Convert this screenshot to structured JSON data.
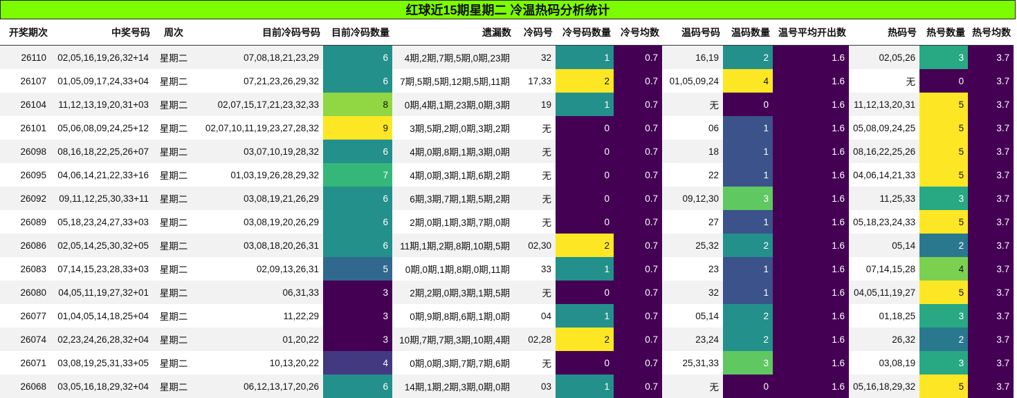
{
  "title": "红球近15期星期二 冷温热码分析统计",
  "columns": [
    "开奖期次",
    "中奖号码",
    "周次",
    "目前冷码号码",
    "目前冷码数量",
    "遗漏数",
    "冷码号",
    "冷号码数量",
    "冷号均数",
    "温码号码",
    "温码数量",
    "温号平均开出数",
    "热码号",
    "热号数量",
    "热号均数"
  ],
  "colors": {
    "title_bg": "#7CFC00",
    "row_even": "#f2f2f2",
    "row_odd": "#ffffff",
    "colormap": "viridis"
  },
  "chart_data": {
    "type": "table",
    "title": "红球近15期星期二 冷温热码分析统计",
    "heatmap_columns": {
      "目前冷码数量": {
        "min": 3,
        "max": 9
      },
      "冷号码数量": {
        "min": 0,
        "max": 2
      },
      "冷号均数": {
        "min": 0.7,
        "max": 0.7
      },
      "温码数量": {
        "min": 0,
        "max": 4
      },
      "温号平均开出数": {
        "min": 1.6,
        "max": 1.6
      },
      "热号数量": {
        "min": 0,
        "max": 5
      },
      "热号均数": {
        "min": 3.7,
        "max": 3.7
      }
    },
    "rows": [
      [
        "26110",
        "02,05,16,19,26,32+14",
        "星期二",
        "07,08,18,21,23,29",
        "6",
        "4期,2期,7期,5期,0期,23期",
        "32",
        "1",
        "0.7",
        "16,19",
        "2",
        "1.6",
        "02,05,26",
        "3",
        "3.7"
      ],
      [
        "26107",
        "01,05,09,17,24,33+04",
        "星期二",
        "07,21,23,26,29,32",
        "6",
        "7期,5期,5期,12期,5期,11期",
        "17,33",
        "2",
        "0.7",
        "01,05,09,24",
        "4",
        "1.6",
        "无",
        "0",
        "3.7"
      ],
      [
        "26104",
        "11,12,13,19,20,31+03",
        "星期二",
        "02,07,15,17,21,23,32,33",
        "8",
        "0期,4期,1期,23期,0期,3期",
        "19",
        "1",
        "0.7",
        "无",
        "0",
        "1.6",
        "11,12,13,20,31",
        "5",
        "3.7"
      ],
      [
        "26101",
        "05,06,08,09,24,25+12",
        "星期二",
        "02,07,10,11,19,23,27,28,32",
        "9",
        "3期,5期,2期,0期,3期,2期",
        "无",
        "0",
        "0.7",
        "06",
        "1",
        "1.6",
        "05,08,09,24,25",
        "5",
        "3.7"
      ],
      [
        "26098",
        "08,16,18,22,25,26+07",
        "星期二",
        "03,07,10,19,28,32",
        "6",
        "4期,0期,8期,1期,3期,0期",
        "无",
        "0",
        "0.7",
        "18",
        "1",
        "1.6",
        "08,16,22,25,26",
        "5",
        "3.7"
      ],
      [
        "26095",
        "04,06,14,21,22,33+16",
        "星期二",
        "01,03,19,26,28,29,32",
        "7",
        "4期,0期,3期,1期,6期,2期",
        "无",
        "0",
        "0.7",
        "22",
        "1",
        "1.6",
        "04,06,14,21,33",
        "5",
        "3.7"
      ],
      [
        "26092",
        "09,11,12,25,30,33+11",
        "星期二",
        "03,08,19,21,26,29",
        "6",
        "6期,3期,7期,1期,5期,2期",
        "无",
        "0",
        "0.7",
        "09,12,30",
        "3",
        "1.6",
        "11,25,33",
        "3",
        "3.7"
      ],
      [
        "26089",
        "05,18,23,24,27,33+03",
        "星期二",
        "03,08,19,20,26,29",
        "6",
        "2期,0期,1期,3期,7期,0期",
        "无",
        "0",
        "0.7",
        "27",
        "1",
        "1.6",
        "05,18,23,24,33",
        "5",
        "3.7"
      ],
      [
        "26086",
        "02,05,14,25,30,32+05",
        "星期二",
        "03,08,18,20,26,31",
        "6",
        "11期,1期,2期,8期,10期,5期",
        "02,30",
        "2",
        "0.7",
        "25,32",
        "2",
        "1.6",
        "05,14",
        "2",
        "3.7"
      ],
      [
        "26083",
        "07,14,15,23,28,33+03",
        "星期二",
        "02,09,13,26,31",
        "5",
        "0期,0期,1期,8期,0期,11期",
        "33",
        "1",
        "0.7",
        "23",
        "1",
        "1.6",
        "07,14,15,28",
        "4",
        "3.7"
      ],
      [
        "26080",
        "04,05,11,19,27,32+01",
        "星期二",
        "06,31,33",
        "3",
        "2期,2期,0期,3期,1期,5期",
        "无",
        "0",
        "0.7",
        "32",
        "1",
        "1.6",
        "04,05,11,19,27",
        "5",
        "3.7"
      ],
      [
        "26077",
        "01,04,05,14,18,25+04",
        "星期二",
        "11,22,29",
        "3",
        "0期,9期,8期,6期,1期,0期",
        "04",
        "1",
        "0.7",
        "05,14",
        "2",
        "1.6",
        "01,18,25",
        "3",
        "3.7"
      ],
      [
        "26074",
        "02,23,24,26,28,32+04",
        "星期二",
        "01,20,22",
        "3",
        "10期,7期,7期,3期,10期,4期",
        "02,28",
        "2",
        "0.7",
        "23,24",
        "2",
        "1.6",
        "26,32",
        "2",
        "3.7"
      ],
      [
        "26071",
        "03,08,19,25,31,33+05",
        "星期二",
        "10,13,20,22",
        "4",
        "0期,0期,3期,7期,7期,6期",
        "无",
        "0",
        "0.7",
        "25,31,33",
        "3",
        "1.6",
        "03,08,19",
        "3",
        "3.7"
      ],
      [
        "26068",
        "03,05,16,18,29,32+04",
        "星期二",
        "06,12,13,17,20,26",
        "6",
        "14期,1期,2期,3期,0期,0期",
        "03",
        "1",
        "0.7",
        "无",
        "0",
        "1.6",
        "05,16,18,29,32",
        "5",
        "3.7"
      ]
    ]
  }
}
